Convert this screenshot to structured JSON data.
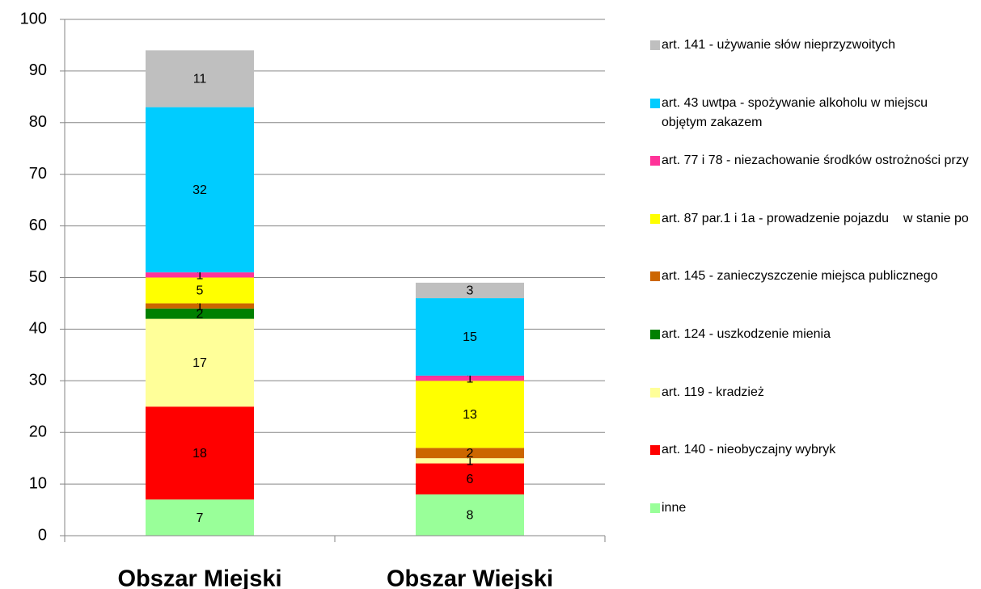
{
  "chart_data": {
    "type": "stacked_bar",
    "categories": [
      "Obszar Miejski",
      "Obszar Wiejski"
    ],
    "ylim": [
      0,
      100
    ],
    "yticks": [
      0,
      10,
      20,
      30,
      40,
      50,
      60,
      70,
      80,
      90,
      100
    ],
    "grid": true,
    "legend": "right",
    "series": [
      {
        "name": "inne",
        "color": "#99ff99",
        "values": [
          7,
          8
        ]
      },
      {
        "name": "art. 140 - nieobyczajny wybryk",
        "color": "#ff0000",
        "values": [
          18,
          6
        ]
      },
      {
        "name": "art. 119 - kradzież",
        "color": "#ffff99",
        "values": [
          17,
          1
        ]
      },
      {
        "name": "art. 124 - uszkodzenie mienia",
        "color": "#008000",
        "values": [
          2,
          0
        ]
      },
      {
        "name": "art. 145 - zanieczyszczenie miejsca publicznego",
        "color": "#cc6600",
        "values": [
          1,
          2
        ]
      },
      {
        "name": "art. 87 par.1 i 1a - prowadzenie pojazdu    w stanie po",
        "color": "#ffff00",
        "values": [
          5,
          13
        ]
      },
      {
        "name": "art. 77 i 78 - niezachowanie środków ostrożności przy",
        "color": "#ff3399",
        "values": [
          1,
          1
        ]
      },
      {
        "name": "art. 43 uwtpa - spożywanie alkoholu w miejscu objętym zakazem",
        "color": "#00ccff",
        "values": [
          32,
          15
        ]
      },
      {
        "name": "art. 141 - używanie słów nieprzyzwoitych",
        "color": "#bfbfbf",
        "values": [
          11,
          3
        ]
      }
    ]
  }
}
